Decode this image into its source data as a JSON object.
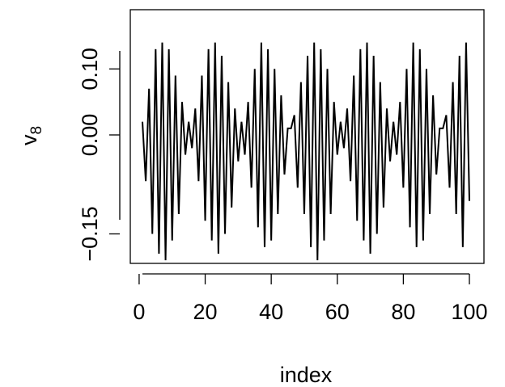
{
  "chart_data": {
    "type": "line",
    "title": "",
    "xlabel": "index",
    "ylabel_main": "v",
    "ylabel_sub": "8",
    "xlim": [
      1,
      100
    ],
    "ylim": [
      -0.18,
      0.18
    ],
    "xticks": [
      0,
      20,
      40,
      60,
      80,
      100
    ],
    "xtick_labels": [
      "0",
      "20",
      "40",
      "60",
      "80",
      "100"
    ],
    "yticks": [
      -0.15,
      0,
      0.1
    ],
    "ytick_labels": [
      "-0.15",
      "0.00",
      "0.10"
    ],
    "series": [
      {
        "x": [
          1,
          2,
          3,
          4,
          5,
          6,
          7,
          8,
          9,
          10,
          11,
          12,
          13,
          14,
          15,
          16,
          17,
          18,
          19,
          20,
          21,
          22,
          23,
          24,
          25,
          26,
          27,
          28,
          29,
          30,
          31,
          32,
          33,
          34,
          35,
          36,
          37,
          38,
          39,
          40,
          41,
          42,
          43,
          44,
          45,
          46,
          47,
          48,
          49,
          50,
          51,
          52,
          53,
          54,
          55,
          56,
          57,
          58,
          59,
          60,
          61,
          62,
          63,
          64,
          65,
          66,
          67,
          68,
          69,
          70,
          71,
          72,
          73,
          74,
          75,
          76,
          77,
          78,
          79,
          80,
          81,
          82,
          83,
          84,
          85,
          86,
          87,
          88,
          89,
          90,
          91,
          92,
          93,
          94,
          95,
          96,
          97,
          98,
          99,
          100
        ],
        "y": [
          0.02,
          -0.07,
          0.07,
          -0.15,
          0.13,
          -0.18,
          0.14,
          -0.19,
          0.13,
          -0.16,
          0.09,
          -0.12,
          0.05,
          -0.03,
          0.02,
          -0.02,
          0.04,
          -0.07,
          0.09,
          -0.13,
          0.13,
          -0.16,
          0.14,
          -0.18,
          0.12,
          -0.15,
          0.08,
          -0.11,
          0.04,
          -0.04,
          0.02,
          -0.03,
          0.05,
          -0.08,
          0.1,
          -0.14,
          0.14,
          -0.17,
          0.13,
          -0.16,
          0.1,
          -0.12,
          0.06,
          -0.06,
          0.01,
          0.01,
          0.03,
          -0.08,
          0.08,
          -0.12,
          0.12,
          -0.17,
          0.14,
          -0.19,
          0.13,
          -0.16,
          0.1,
          -0.12,
          0.05,
          -0.03,
          0.02,
          -0.02,
          0.04,
          -0.07,
          0.09,
          -0.13,
          0.13,
          -0.16,
          0.14,
          -0.18,
          0.12,
          -0.15,
          0.08,
          -0.11,
          0.04,
          -0.04,
          0.02,
          -0.03,
          0.05,
          -0.08,
          0.1,
          -0.14,
          0.14,
          -0.17,
          0.13,
          -0.16,
          0.1,
          -0.12,
          0.06,
          -0.06,
          0.01,
          0.01,
          0.03,
          -0.08,
          0.08,
          -0.12,
          0.12,
          -0.17,
          0.14,
          -0.1
        ]
      }
    ]
  }
}
